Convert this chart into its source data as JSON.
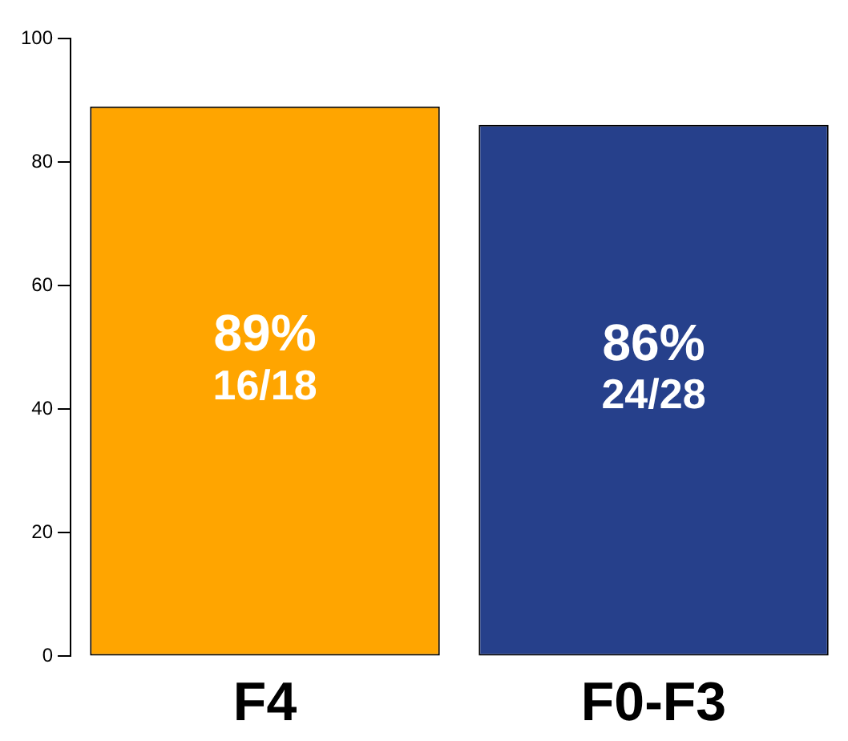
{
  "chart_data": {
    "type": "bar",
    "categories": [
      "F4",
      "F0-F3"
    ],
    "values": [
      89,
      86
    ],
    "colors": [
      "#ffa500",
      "#26408b"
    ],
    "value_labels": [
      "89%\n16/18",
      "86%\n24/28"
    ],
    "ylim": [
      0,
      100
    ],
    "yticks": [
      0,
      20,
      40,
      60,
      80,
      100
    ],
    "grid": false,
    "legend": false
  }
}
